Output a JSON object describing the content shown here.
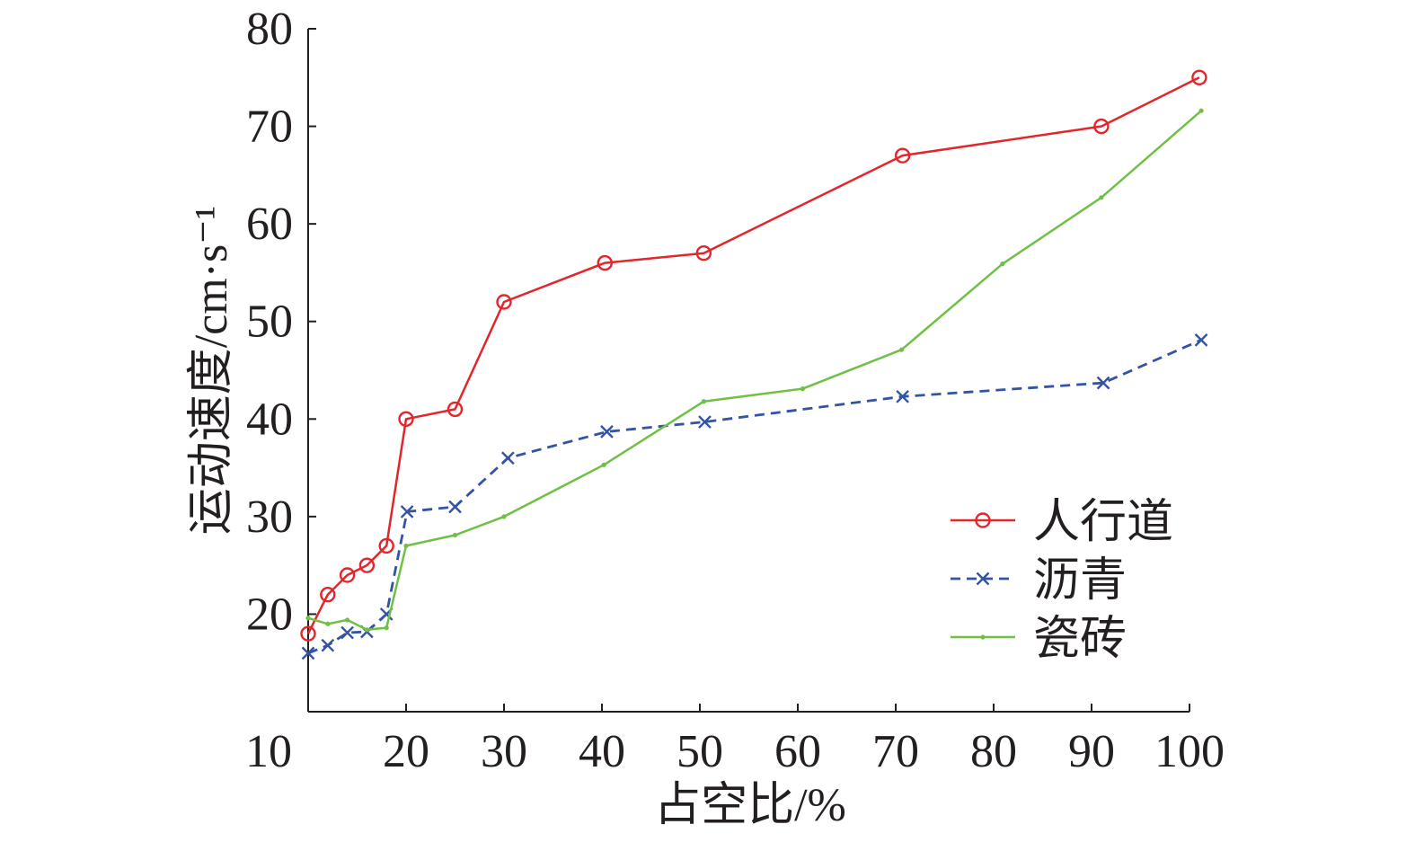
{
  "chart_data": {
    "type": "line",
    "xlabel": "占空比/%",
    "ylabel": "运动速度/cm·s⁻¹",
    "xlim": [
      10,
      100
    ],
    "ylim": [
      10,
      80
    ],
    "xticks": [
      10,
      20,
      30,
      40,
      50,
      60,
      70,
      80,
      90,
      100
    ],
    "yticks": [
      20,
      30,
      40,
      50,
      60,
      70,
      80
    ],
    "grid": false,
    "legend_position": "lower-right",
    "series": [
      {
        "name": "人行道",
        "color": "#e2262b",
        "line": "solid",
        "marker": "circle",
        "x": [
          10,
          12,
          14,
          16,
          18,
          20,
          25,
          30,
          40.3,
          50.4,
          70.7,
          91,
          101
        ],
        "y": [
          18,
          22,
          24,
          25,
          27,
          40,
          41,
          52,
          56,
          57,
          67,
          70,
          75
        ]
      },
      {
        "name": "沥青",
        "color": "#3353a4",
        "line": "dashed",
        "marker": "cross",
        "x": [
          10,
          12,
          14,
          16,
          18,
          20.1,
          25,
          30.4,
          40.5,
          50.5,
          70.7,
          91.2,
          101.2
        ],
        "y": [
          16,
          16.8,
          18.1,
          18.2,
          20,
          30.5,
          31,
          36,
          38.7,
          39.7,
          42.3,
          43.7,
          48.1
        ]
      },
      {
        "name": "瓷砖",
        "color": "#70c045",
        "line": "solid",
        "marker": "dot",
        "x": [
          10,
          12,
          14,
          16,
          18,
          20,
          25,
          30,
          40.2,
          50.4,
          60.5,
          70.6,
          80.9,
          91,
          101.2
        ],
        "y": [
          19.6,
          19,
          19.4,
          18.4,
          18.6,
          27,
          28.1,
          30,
          35.3,
          41.8,
          43.1,
          47.1,
          55.9,
          62.7,
          71.6
        ]
      }
    ]
  }
}
